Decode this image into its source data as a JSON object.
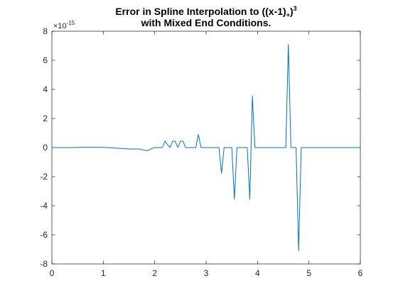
{
  "chart_data": {
    "type": "line",
    "title": {
      "line1_prefix": "Error  in  Spline  Interpolation  to  ((x-1)",
      "line1_sub": "+",
      "line1_close": ")",
      "line1_sup": "3",
      "line2": "with  Mixed  End  Conditions."
    },
    "xlabel": "",
    "ylabel": "",
    "xlim": [
      0,
      6
    ],
    "ylim": [
      -8,
      8
    ],
    "xticks": [
      0,
      1,
      2,
      3,
      4,
      5,
      6
    ],
    "yticks": [
      -8,
      -6,
      -4,
      -2,
      0,
      2,
      4,
      6,
      8
    ],
    "y_exponent": {
      "base": "×10",
      "power": "-15"
    },
    "grid": false,
    "series": [
      {
        "color": "#0072BD",
        "x": [
          0,
          0.3,
          0.6,
          0.9,
          1.1,
          1.3,
          1.5,
          1.6,
          1.7,
          1.8,
          1.85,
          1.9,
          1.95,
          2.0,
          2.05,
          2.1,
          2.15,
          2.2,
          2.25,
          2.3,
          2.35,
          2.4,
          2.45,
          2.5,
          2.55,
          2.6,
          2.65,
          2.7,
          2.75,
          2.8,
          2.85,
          2.9,
          2.95,
          3.0,
          3.1,
          3.2,
          3.25,
          3.3,
          3.35,
          3.4,
          3.5,
          3.55,
          3.6,
          3.7,
          3.8,
          3.85,
          3.9,
          3.95,
          4.0,
          4.2,
          4.4,
          4.5,
          4.55,
          4.6,
          4.65,
          4.7,
          4.75,
          4.8,
          4.85,
          4.9,
          5.0,
          5.5,
          6.0
        ],
        "values": [
          0,
          0,
          0.02,
          0.02,
          0,
          -0.05,
          -0.1,
          -0.1,
          -0.1,
          -0.18,
          -0.22,
          -0.15,
          -0.05,
          0,
          0,
          0,
          0,
          0.44,
          0.2,
          0,
          0.44,
          0.44,
          0,
          0.44,
          0.44,
          0,
          0,
          0,
          0,
          0,
          0.9,
          0,
          0,
          0,
          0,
          0,
          0,
          -1.77,
          0,
          0,
          0,
          -3.55,
          0,
          0,
          0,
          -3.55,
          3.55,
          0,
          0,
          0,
          0,
          0,
          0,
          7.1,
          0,
          0,
          0,
          -7.1,
          0,
          0,
          0,
          0,
          0
        ]
      }
    ]
  }
}
